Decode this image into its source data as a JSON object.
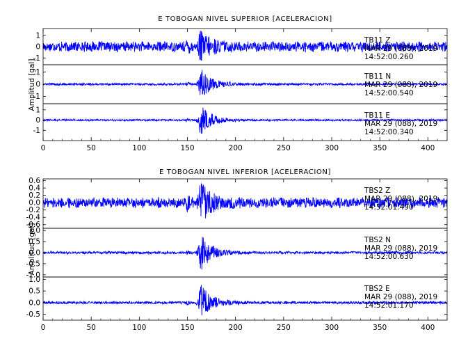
{
  "chart_data": [
    {
      "type": "line",
      "title": "E TOBOGAN NIVEL SUPERIOR [ACELERACION]",
      "ylabel": "Amplitud [gal]",
      "xlabel": "",
      "xlim": [
        0,
        420
      ],
      "xticks": [
        0,
        50,
        100,
        150,
        200,
        250,
        300,
        350,
        400
      ],
      "line_color": "#0000ff",
      "panels": [
        {
          "station": "TB11",
          "component": "Z",
          "date": "MAR 29 (088), 2019",
          "time": "14:52:00.260",
          "ylim": [
            -1.6,
            1.6
          ],
          "yticks": [
            -1,
            0,
            1
          ],
          "noise_amplitude": 0.38,
          "event_peak_amplitude": 1.3,
          "event_onset_s": 162,
          "precursor_s": 150
        },
        {
          "station": "TB11",
          "component": "N",
          "date": "MAR 29 (088), 2019",
          "time": "14:52:00.540",
          "ylim": [
            -1.6,
            1.6
          ],
          "yticks": [
            -1,
            0,
            1
          ],
          "noise_amplitude": 0.08,
          "event_peak_amplitude": 1.5,
          "event_onset_s": 162,
          "precursor_s": 150
        },
        {
          "station": "TB11",
          "component": "E",
          "date": "MAR 29 (088), 2019",
          "time": "14:52:00.340",
          "ylim": [
            -2.0,
            1.6
          ],
          "yticks": [
            -1,
            0,
            1
          ],
          "noise_amplitude": 0.08,
          "event_peak_amplitude": 1.7,
          "event_onset_s": 162,
          "precursor_s": 150
        }
      ]
    },
    {
      "type": "line",
      "title": "E TOBOGAN NIVEL INFERIOR [ACELERACION]",
      "ylabel": "Amplitud [gal]",
      "xlabel": "",
      "xlim": [
        0,
        420
      ],
      "xticks": [
        0,
        50,
        100,
        150,
        200,
        250,
        300,
        350,
        400
      ],
      "line_color": "#0000ff",
      "panels": [
        {
          "station": "TBS2",
          "component": "Z",
          "date": "MAR 29 (088), 2019",
          "time": "14:52:01.490",
          "ylim": [
            -0.7,
            0.65
          ],
          "yticks": [
            -0.6,
            -0.4,
            -0.2,
            0.0,
            0.2,
            0.4,
            0.6
          ],
          "tick_decimals": 1,
          "noise_amplitude": 0.12,
          "event_peak_amplitude": 0.6,
          "event_onset_s": 162,
          "precursor_s": 150
        },
        {
          "station": "TBS2",
          "component": "N",
          "date": "MAR 29 (088), 2019",
          "time": "14:52:00.630",
          "ylim": [
            -1.1,
            1.1
          ],
          "yticks": [
            -1.0,
            -0.5,
            0.0,
            0.5,
            1.0
          ],
          "tick_decimals": 1,
          "noise_amplitude": 0.05,
          "event_peak_amplitude": 1.0,
          "event_onset_s": 162,
          "precursor_s": 150
        },
        {
          "station": "TBS2",
          "component": "E",
          "date": "MAR 29 (088), 2019",
          "time": "14:52:01.170",
          "ylim": [
            -0.75,
            1.1
          ],
          "yticks": [
            -0.5,
            0.0,
            0.5,
            1.0
          ],
          "tick_decimals": 1,
          "noise_amplitude": 0.05,
          "event_peak_amplitude": 0.9,
          "event_onset_s": 162,
          "precursor_s": 150
        }
      ]
    }
  ]
}
